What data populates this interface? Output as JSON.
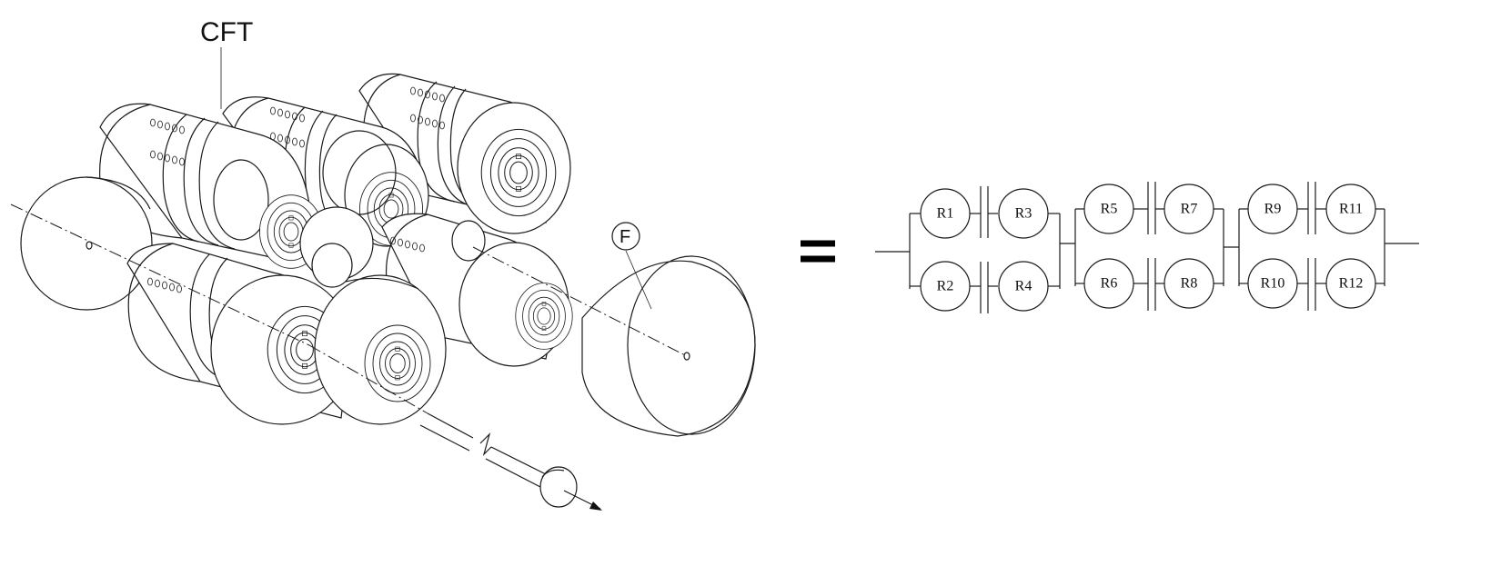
{
  "labels": {
    "cft": "CFT",
    "filter": "F"
  },
  "equivalent_circuit": {
    "top_row": [
      "R1",
      "R3",
      "R5",
      "R7",
      "R9",
      "R11"
    ],
    "bottom_row": [
      "R2",
      "R4",
      "R6",
      "R8",
      "R10",
      "R12"
    ]
  }
}
